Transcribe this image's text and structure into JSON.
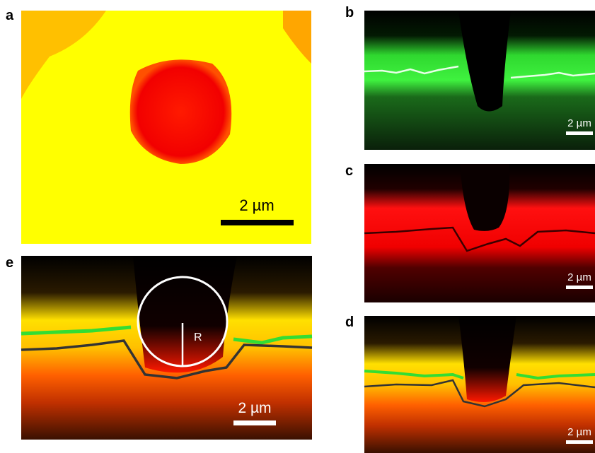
{
  "panels": [
    {
      "label": "a",
      "scale_bar": "2 µm"
    },
    {
      "label": "b",
      "scale_bar": "2 µm"
    },
    {
      "label": "c",
      "scale_bar": "2 µm"
    },
    {
      "label": "d",
      "scale_bar": "2 µm"
    },
    {
      "label": "e",
      "scale_bar": "2 µm",
      "annotation": "R"
    }
  ]
}
